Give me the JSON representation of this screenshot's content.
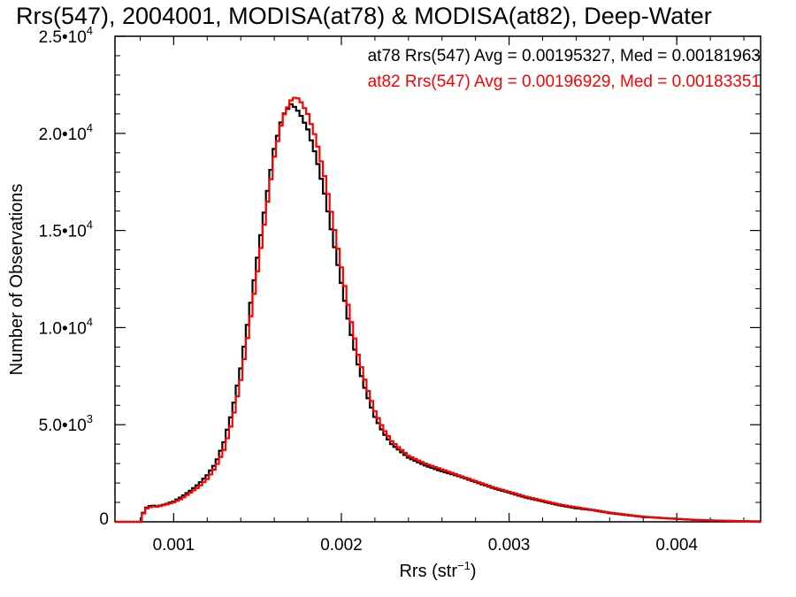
{
  "chart_data": {
    "type": "line",
    "title": "Rrs(547), 2004001, MODISA(at78) & MODISA(at82), Deep-Water",
    "xlabel": "Rrs (str",
    "xlabel_sup": "−1",
    "xlabel_close": ")",
    "ylabel": "Number of Observations",
    "xlim": [
      0.00065,
      0.0045
    ],
    "ylim": [
      0,
      25000
    ],
    "x_ticks": [
      {
        "value": 0.001,
        "label": "0.001"
      },
      {
        "value": 0.002,
        "label": "0.002"
      },
      {
        "value": 0.003,
        "label": "0.003"
      },
      {
        "value": 0.004,
        "label": "0.004"
      }
    ],
    "y_ticks": [
      {
        "value": 0,
        "mant": "0",
        "exp": ""
      },
      {
        "value": 5000,
        "mant": "5.0•10",
        "exp": "3"
      },
      {
        "value": 10000,
        "mant": "1.0•10",
        "exp": "4"
      },
      {
        "value": 15000,
        "mant": "1.5•10",
        "exp": "4"
      },
      {
        "value": 20000,
        "mant": "2.0•10",
        "exp": "4"
      },
      {
        "value": 25000,
        "mant": "2.5•10",
        "exp": "4"
      }
    ],
    "grid": false,
    "legend": "top-right",
    "series": [
      {
        "name": "at78",
        "legend_text": "at78 Rrs(547) Avg = 0.00195327, Med = 0.00181963",
        "color": "#000000",
        "x": [
          0.00065,
          0.0008,
          0.00083,
          0.00087,
          0.0009,
          0.00095,
          0.001,
          0.00105,
          0.0011,
          0.00115,
          0.0012,
          0.00125,
          0.0013,
          0.00135,
          0.0014,
          0.00145,
          0.0015,
          0.00155,
          0.0016,
          0.00165,
          0.0017,
          0.00173,
          0.00176,
          0.0018,
          0.00185,
          0.0019,
          0.00195,
          0.002,
          0.00205,
          0.0021,
          0.00215,
          0.0022,
          0.00225,
          0.0023,
          0.0024,
          0.0025,
          0.0026,
          0.0027,
          0.0028,
          0.0029,
          0.003,
          0.0031,
          0.0032,
          0.0033,
          0.0034,
          0.0035,
          0.0036,
          0.0037,
          0.0038,
          0.0039,
          0.004,
          0.0041,
          0.0042,
          0.0043,
          0.0044,
          0.0045
        ],
        "y": [
          0,
          0,
          700,
          850,
          800,
          900,
          1050,
          1300,
          1600,
          1950,
          2400,
          3000,
          4100,
          5700,
          7900,
          10700,
          13600,
          16500,
          19200,
          20900,
          21500,
          21300,
          20900,
          20200,
          18800,
          16900,
          14600,
          12300,
          10000,
          8100,
          6600,
          5400,
          4600,
          4000,
          3300,
          2900,
          2600,
          2350,
          2050,
          1750,
          1500,
          1250,
          1050,
          850,
          700,
          600,
          450,
          350,
          250,
          200,
          150,
          100,
          70,
          50,
          30,
          20
        ]
      },
      {
        "name": "at82",
        "legend_text": "at82 Rrs(547) Avg = 0.00196929, Med = 0.00183351",
        "color": "#ff0000",
        "x": [
          0.00065,
          0.0008,
          0.00083,
          0.00087,
          0.0009,
          0.00095,
          0.001,
          0.00105,
          0.0011,
          0.00115,
          0.0012,
          0.00125,
          0.0013,
          0.00135,
          0.0014,
          0.00145,
          0.0015,
          0.00155,
          0.0016,
          0.00165,
          0.0017,
          0.00173,
          0.00176,
          0.0018,
          0.00185,
          0.0019,
          0.00195,
          0.002,
          0.00205,
          0.0021,
          0.00215,
          0.0022,
          0.00225,
          0.0023,
          0.0024,
          0.0025,
          0.0026,
          0.0027,
          0.0028,
          0.0029,
          0.003,
          0.0031,
          0.0032,
          0.0033,
          0.0034,
          0.0035,
          0.0036,
          0.0037,
          0.0038,
          0.0039,
          0.004,
          0.0041,
          0.0042,
          0.0043,
          0.0044,
          0.0045
        ],
        "y": [
          0,
          0,
          650,
          800,
          780,
          870,
          1000,
          1200,
          1500,
          1800,
          2200,
          2800,
          3700,
          5200,
          7300,
          10000,
          12900,
          15900,
          18800,
          20800,
          21700,
          21900,
          21600,
          21000,
          19700,
          17800,
          15500,
          13100,
          10700,
          8600,
          7000,
          5700,
          4800,
          4150,
          3400,
          3000,
          2700,
          2400,
          2100,
          1800,
          1550,
          1300,
          1100,
          900,
          750,
          620,
          480,
          370,
          270,
          210,
          160,
          110,
          80,
          55,
          35,
          25
        ]
      }
    ]
  }
}
